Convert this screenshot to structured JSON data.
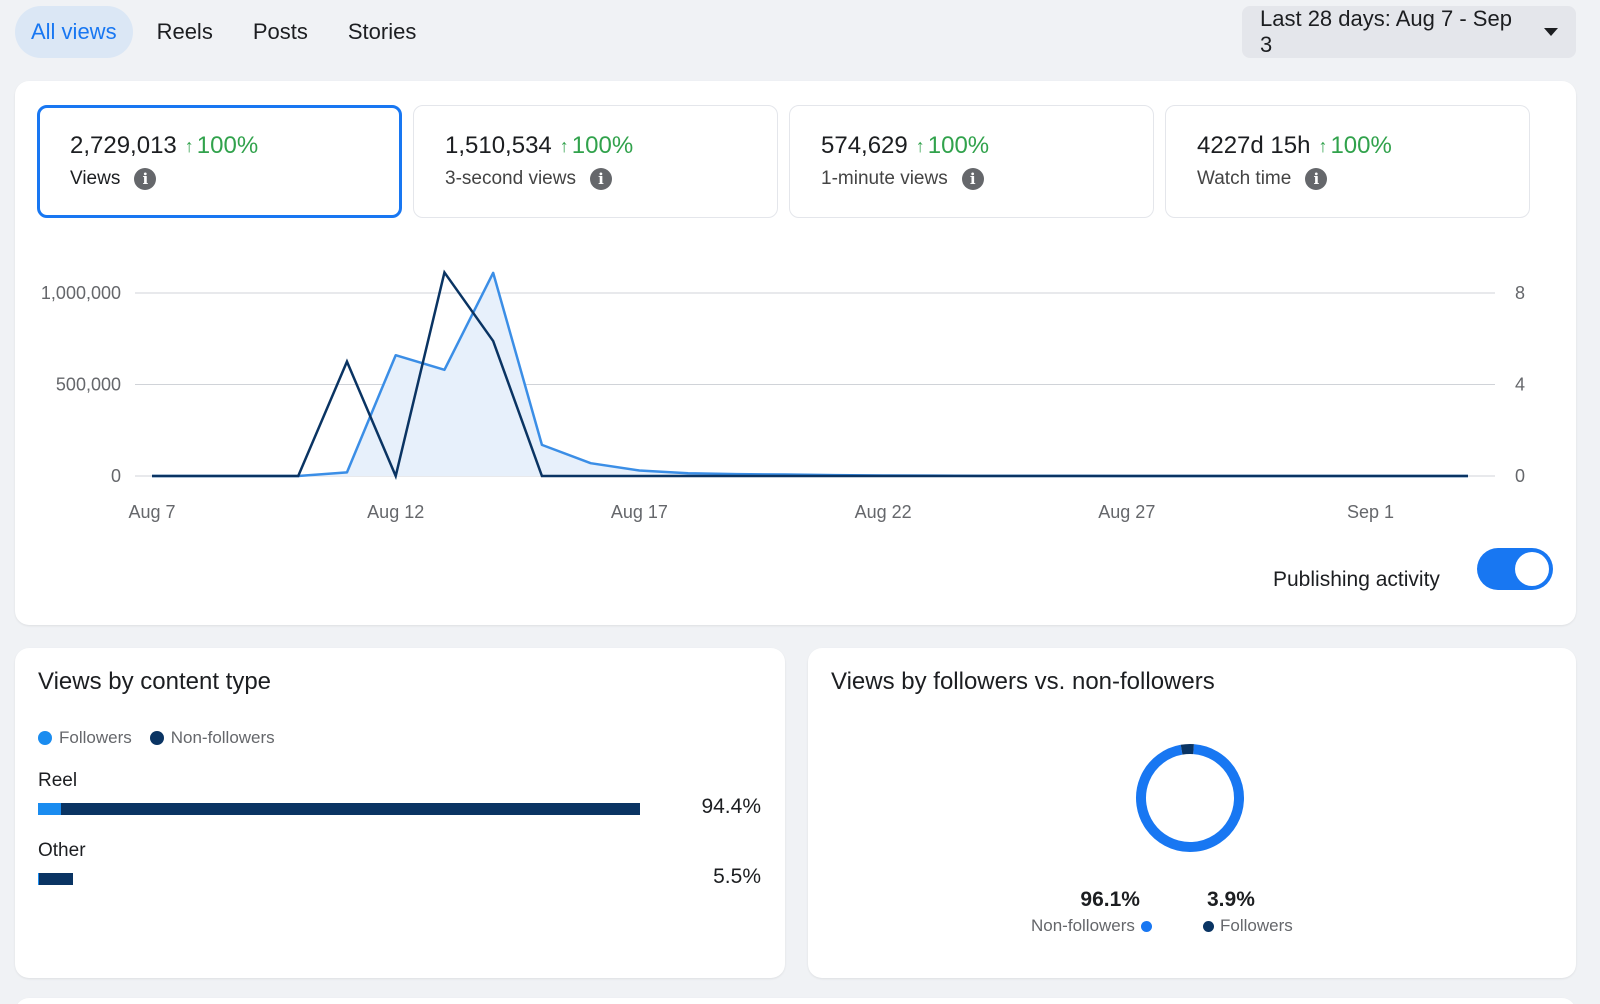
{
  "tabs": [
    {
      "label": "All views",
      "active": true
    },
    {
      "label": "Reels",
      "active": false
    },
    {
      "label": "Posts",
      "active": false
    },
    {
      "label": "Stories",
      "active": false
    }
  ],
  "date_range": {
    "label": "Last 28 days: Aug 7 - Sep 3"
  },
  "metrics": [
    {
      "value": "2,729,013",
      "change": "100%",
      "label": "Views",
      "selected": true
    },
    {
      "value": "1,510,534",
      "change": "100%",
      "label": "3-second views",
      "selected": false
    },
    {
      "value": "574,629",
      "change": "100%",
      "label": "1-minute views",
      "selected": false
    },
    {
      "value": "4227d 15h",
      "change": "100%",
      "label": "Watch time",
      "selected": false
    }
  ],
  "publishing_activity": {
    "label": "Publishing activity",
    "enabled": true
  },
  "colors": {
    "accent": "#1877f2",
    "light_series": "#3b8ee6",
    "dark_series": "#0a3463",
    "area_fill": "#e7f0fb",
    "positive": "#31a24c",
    "followers_bar": "#1a8cf0",
    "non_followers_bar": "#0a3463"
  },
  "chart_data": [
    {
      "type": "line",
      "x": [
        "Aug 7",
        "Aug 8",
        "Aug 9",
        "Aug 10",
        "Aug 11",
        "Aug 12",
        "Aug 13",
        "Aug 14",
        "Aug 15",
        "Aug 16",
        "Aug 17",
        "Aug 18",
        "Aug 19",
        "Aug 20",
        "Aug 21",
        "Aug 22",
        "Aug 23",
        "Aug 24",
        "Aug 25",
        "Aug 26",
        "Aug 27",
        "Aug 28",
        "Aug 29",
        "Aug 30",
        "Aug 31",
        "Sep 1",
        "Sep 2",
        "Sep 3"
      ],
      "x_ticks": [
        "Aug 7",
        "Aug 12",
        "Aug 17",
        "Aug 22",
        "Aug 27",
        "Sep 1"
      ],
      "y_left_ticks": [
        "0",
        "500,000",
        "1,000,000"
      ],
      "y_right_ticks": [
        "0",
        "4",
        "8"
      ],
      "ylim": [
        0,
        1000000
      ],
      "y2lim": [
        0,
        8
      ],
      "grid": true,
      "series": [
        {
          "axis": "left",
          "style": "area",
          "values": [
            0,
            0,
            0,
            0,
            20000,
            660000,
            580000,
            1110000,
            170000,
            70000,
            30000,
            15000,
            10000,
            8000,
            5000,
            3000,
            2000,
            1000,
            1000,
            500,
            0,
            0,
            0,
            0,
            0,
            0,
            0,
            0
          ]
        },
        {
          "axis": "right",
          "style": "line",
          "values": [
            0,
            0,
            0,
            0,
            5.0,
            0,
            8.9,
            5.9,
            0,
            0,
            0,
            0,
            0,
            0,
            0,
            0,
            0,
            0,
            0,
            0,
            0,
            0,
            0,
            0,
            0,
            0,
            0,
            0
          ]
        }
      ]
    },
    {
      "type": "bar",
      "title": "Views by content type",
      "legend": [
        "Followers",
        "Non-followers"
      ],
      "categories": [
        "Reel",
        "Other"
      ],
      "percent_labels": [
        "94.4%",
        "5.5%"
      ],
      "values": [
        94.4,
        5.5
      ],
      "series": [
        {
          "name": "Followers",
          "values": [
            3.6,
            0.2
          ]
        },
        {
          "name": "Non-followers",
          "values": [
            90.8,
            5.3
          ]
        }
      ]
    },
    {
      "type": "pie",
      "title": "Views by followers vs. non-followers",
      "slices": [
        {
          "name": "Non-followers",
          "value": 96.1,
          "label": "96.1%"
        },
        {
          "name": "Followers",
          "value": 3.9,
          "label": "3.9%"
        }
      ]
    }
  ]
}
